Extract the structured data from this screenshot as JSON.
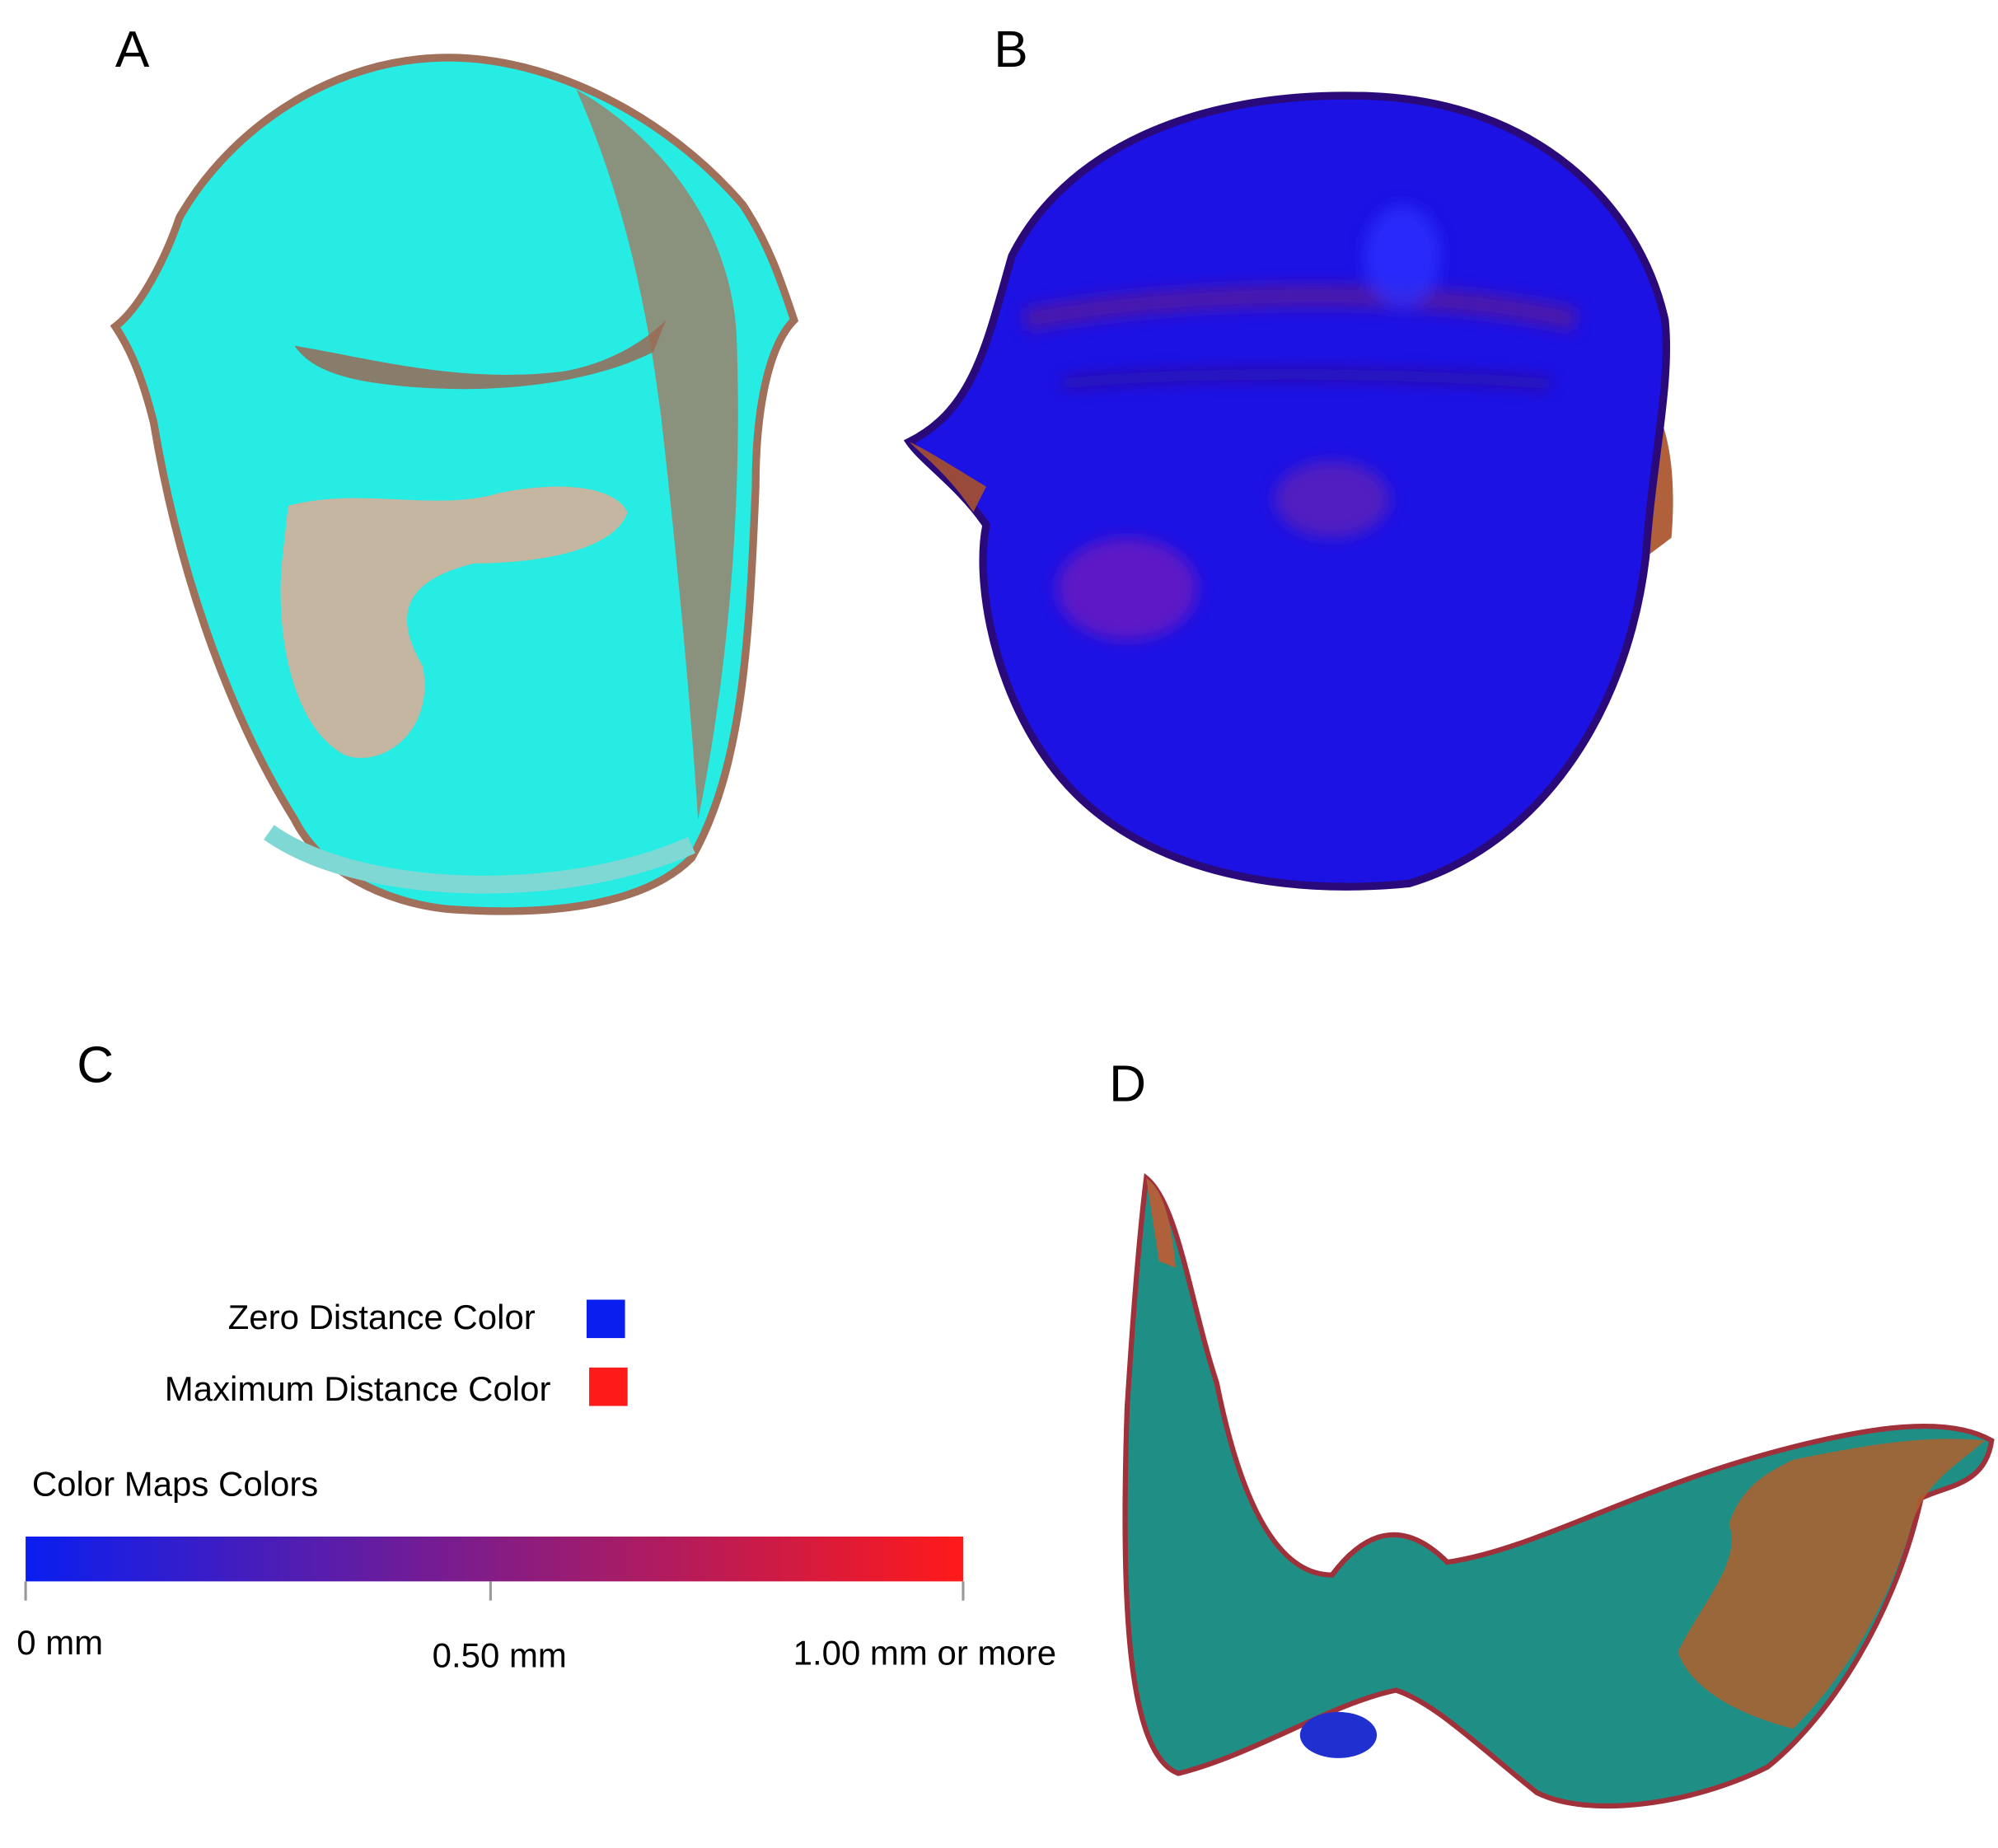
{
  "panels": {
    "a": {
      "label": "A"
    },
    "b": {
      "label": "B"
    },
    "c": {
      "label": "C"
    },
    "d": {
      "label": "D"
    }
  },
  "legend": {
    "zero_label": "Zero Distance Color",
    "zero_color": "#0a1ef0",
    "max_label": "Maximum Distance Color",
    "max_color": "#ff1a1a",
    "scale_title": "Color Maps Colors",
    "scale_labels": [
      "0 mm",
      "0.50 mm",
      "1.00 mm or more"
    ]
  }
}
